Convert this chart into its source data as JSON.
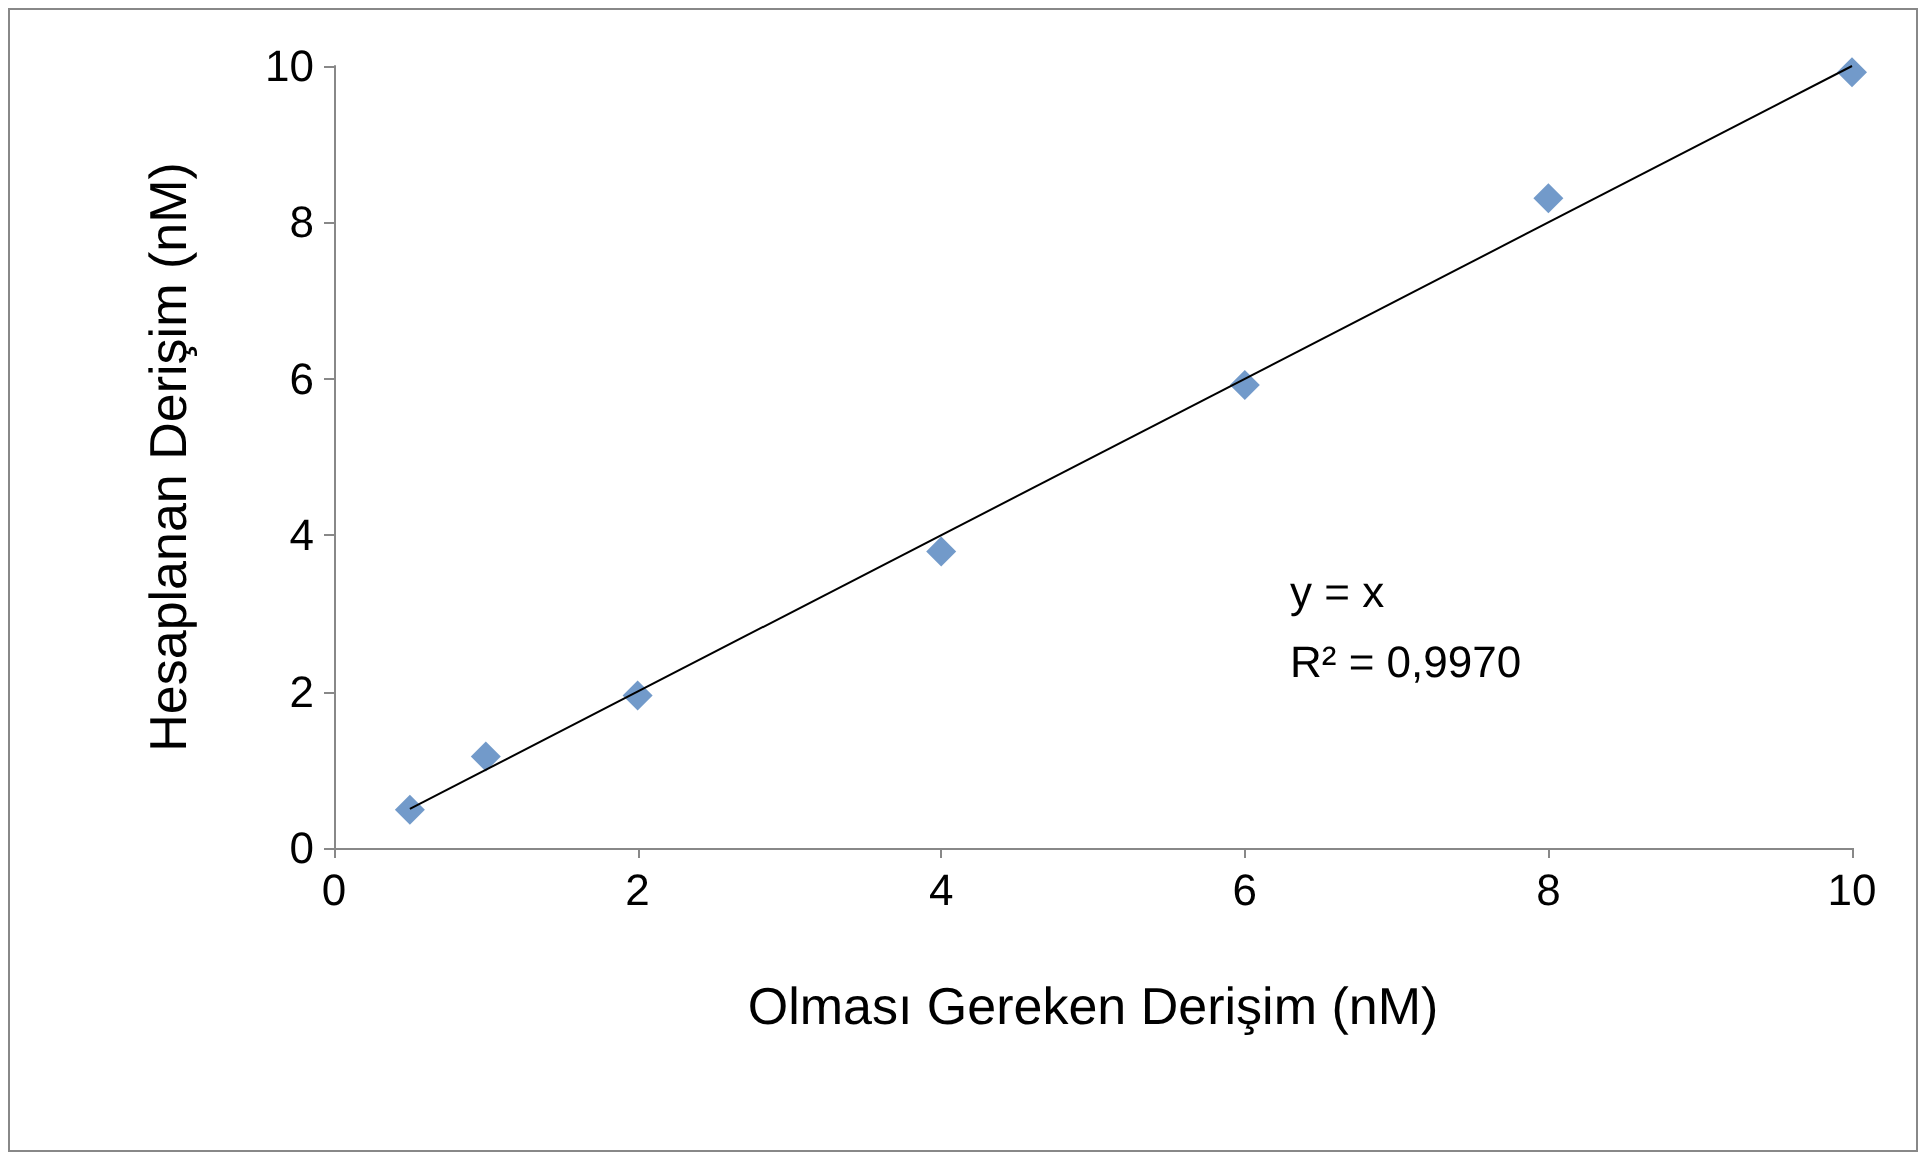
{
  "chart_data": {
    "type": "scatter",
    "xlabel": "Olması Gereken Derişim (nM)",
    "ylabel": "Hesaplanan Derişim (nM)",
    "annotations": [
      "y = x",
      "R² = 0,9970"
    ],
    "x": [
      0.5,
      1,
      2,
      4,
      6,
      8,
      10
    ],
    "series": [
      {
        "color": "#4f81bd",
        "values": [
          0.49,
          1.17,
          1.95,
          3.79,
          5.92,
          8.31,
          9.92
        ],
        "marker": "diamond"
      },
      {
        "type": "line",
        "color": "#000000",
        "x": [
          0.5,
          10
        ],
        "values": [
          0.5,
          10
        ],
        "marker": "none",
        "line_style": "solid"
      }
    ],
    "xlim": [
      0,
      10
    ],
    "xticks": [
      0,
      2,
      4,
      6,
      8,
      10
    ],
    "ylim": [
      0,
      10
    ],
    "yticks": [
      0,
      2,
      4,
      6,
      8,
      10
    ],
    "grid": false
  }
}
